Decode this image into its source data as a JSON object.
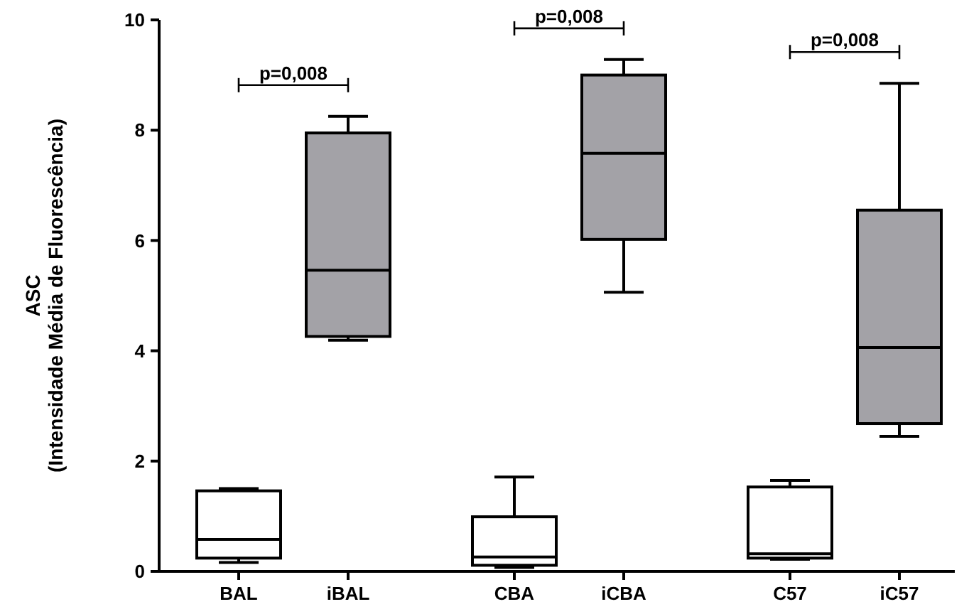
{
  "chart_data": {
    "type": "box",
    "ylabel": "ASC\n(Intensidade Média de Fluorescência)",
    "categories": [
      "BAL",
      "iBAL",
      "CBA",
      "iCBA",
      "C57",
      "iC57"
    ],
    "ylim": [
      0,
      10
    ],
    "yticks": [
      0,
      2,
      4,
      6,
      8,
      10
    ],
    "series": [
      {
        "color": "#ffffff",
        "boxes": [
          {
            "low": 0.16,
            "q1": 0.24,
            "median": 0.58,
            "q3": 1.46,
            "high": 1.5
          },
          null,
          {
            "low": 0.07,
            "q1": 0.11,
            "median": 0.26,
            "q3": 0.99,
            "high": 1.71
          },
          null,
          {
            "low": 0.22,
            "q1": 0.24,
            "median": 0.32,
            "q3": 1.53,
            "high": 1.65
          },
          null
        ]
      },
      {
        "color": "#a3a2a7",
        "boxes": [
          null,
          {
            "low": 4.19,
            "q1": 4.26,
            "median": 5.46,
            "q3": 7.95,
            "high": 8.25
          },
          null,
          {
            "low": 5.06,
            "q1": 6.02,
            "median": 7.58,
            "q3": 9.0,
            "high": 9.28
          },
          null,
          {
            "low": 2.45,
            "q1": 2.68,
            "median": 4.06,
            "q3": 6.55,
            "high": 8.85
          }
        ]
      }
    ],
    "annotations": [
      "p=0,008",
      "p=0,008",
      "p=0,008"
    ]
  }
}
